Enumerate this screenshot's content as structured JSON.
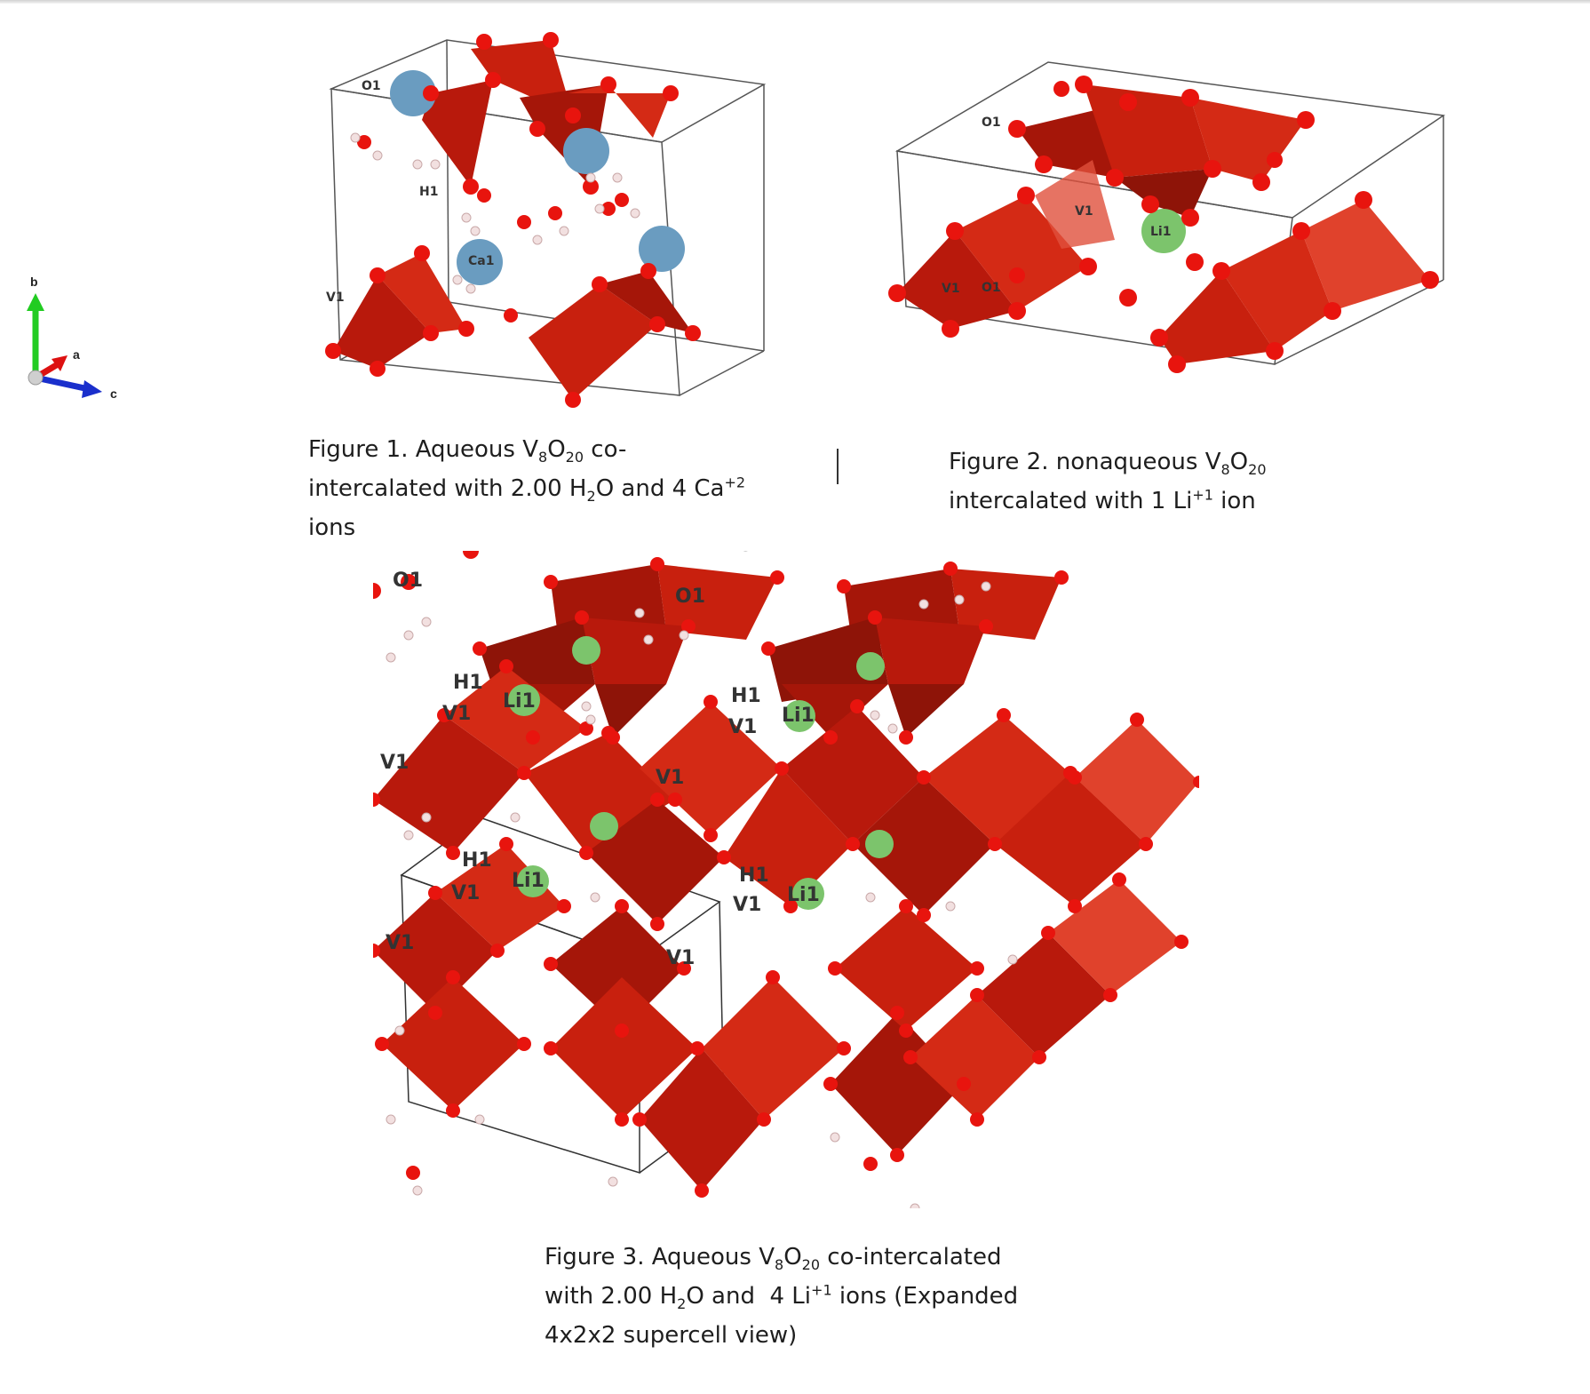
{
  "figures": [
    {
      "atom_labels": [
        "O1",
        "H1",
        "Ca1",
        "V1"
      ]
    },
    {
      "atom_labels": [
        "O1",
        "V1",
        "Li1",
        "V1",
        "O1"
      ]
    },
    {
      "atom_labels": [
        "O1",
        "Li1",
        "H1",
        "V1"
      ]
    }
  ],
  "axes": {
    "b": "b",
    "a": "a",
    "c": "c"
  },
  "captions": {
    "fig1": {
      "p1": "Figure 1. Aqueous V",
      "s1": "8",
      "p2": "O",
      "s2": "20",
      "p3": " co-",
      "p4": "intercalated with 2.00 H",
      "s3": "2",
      "p5": "O and 4 Ca",
      "sup1": "+2",
      "p6": "ions"
    },
    "fig2": {
      "p1": "Figure 2. nonaqueous V",
      "s1": "8",
      "p2": "O",
      "s2": "20",
      "p3": "intercalated with 1 Li",
      "sup1": "+1",
      "p4": " ion"
    },
    "fig3": {
      "p1": "Figure 3. Aqueous V",
      "s1": "8",
      "p2": "O",
      "s2": "20",
      "p3": " co-intercalated",
      "p4": "with 2.00 H",
      "s3": "2",
      "p5": "O and  4 Li",
      "sup1": "+1",
      "p6": " ions (Expanded",
      "p7": "4x2x2 supercell view)"
    }
  },
  "colors": {
    "polyhedron": "#c8200e",
    "polyhedron_dark": "#8e1408",
    "oxygen": "#e8140e",
    "calcium": "#6a9cc0",
    "lithium": "#7cc46c",
    "hydrogen": "#f2e0e0",
    "axis_b": "#22cc22",
    "axis_a": "#dd1111",
    "axis_c": "#1a2fcc"
  }
}
